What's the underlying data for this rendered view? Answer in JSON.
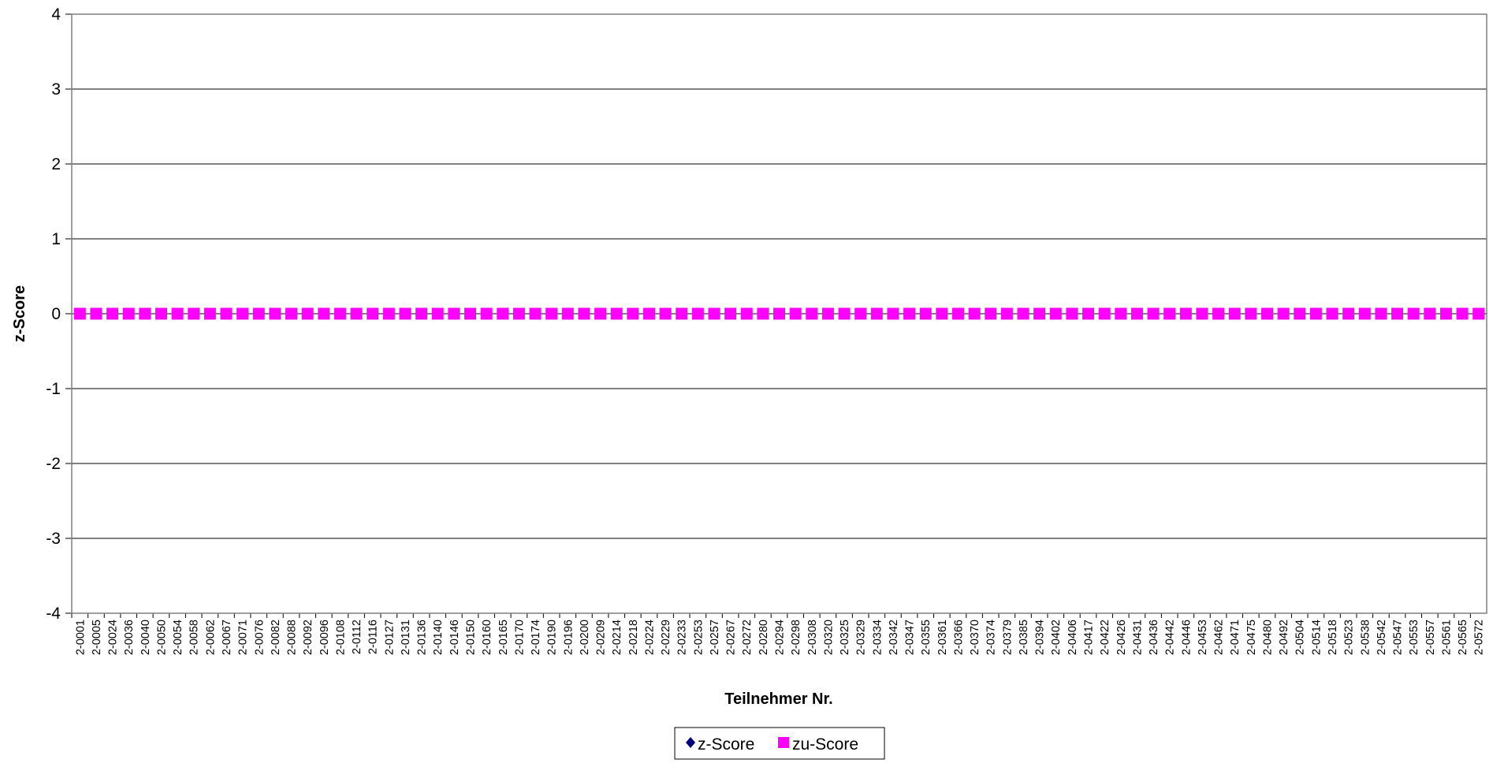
{
  "chart_data": {
    "type": "line",
    "title": "",
    "xlabel": "Teilnehmer Nr.",
    "ylabel": "z-Score",
    "ylim": [
      -4,
      4
    ],
    "yticks": [
      4,
      3,
      2,
      1,
      0,
      -1,
      -2,
      -3,
      -4
    ],
    "grid": true,
    "legend_position": "bottom",
    "categories": [
      "2-0001",
      "2-0005",
      "2-0024",
      "2-0036",
      "2-0040",
      "2-0050",
      "2-0054",
      "2-0058",
      "2-0062",
      "2-0067",
      "2-0071",
      "2-0076",
      "2-0082",
      "2-0088",
      "2-0092",
      "2-0096",
      "2-0108",
      "2-0112",
      "2-0116",
      "2-0127",
      "2-0131",
      "2-0136",
      "2-0140",
      "2-0146",
      "2-0150",
      "2-0160",
      "2-0165",
      "2-0170",
      "2-0174",
      "2-0190",
      "2-0196",
      "2-0200",
      "2-0209",
      "2-0214",
      "2-0218",
      "2-0224",
      "2-0229",
      "2-0233",
      "2-0253",
      "2-0257",
      "2-0267",
      "2-0272",
      "2-0280",
      "2-0294",
      "2-0298",
      "2-0308",
      "2-0320",
      "2-0325",
      "2-0329",
      "2-0334",
      "2-0342",
      "2-0347",
      "2-0355",
      "2-0361",
      "2-0366",
      "2-0370",
      "2-0374",
      "2-0379",
      "2-0385",
      "2-0394",
      "2-0402",
      "2-0406",
      "2-0417",
      "2-0422",
      "2-0426",
      "2-0431",
      "2-0436",
      "2-0442",
      "2-0446",
      "2-0453",
      "2-0462",
      "2-0471",
      "2-0475",
      "2-0480",
      "2-0492",
      "2-0504",
      "2-0514",
      "2-0518",
      "2-0523",
      "2-0538",
      "2-0542",
      "2-0547",
      "2-0553",
      "2-0557",
      "2-0561",
      "2-0565",
      "2-0572"
    ],
    "series": [
      {
        "name": "z-Score",
        "color": "#000080",
        "marker": "diamond",
        "values": [
          0,
          0,
          0,
          0,
          0,
          0,
          0,
          0,
          0,
          0,
          0,
          0,
          0,
          0,
          0,
          0,
          0,
          0,
          0,
          0,
          0,
          0,
          0,
          0,
          0,
          0,
          0,
          0,
          0,
          0,
          0,
          0,
          0,
          0,
          0,
          0,
          0,
          0,
          0,
          0,
          0,
          0,
          0,
          0,
          0,
          0,
          0,
          0,
          0,
          0,
          0,
          0,
          0,
          0,
          0,
          0,
          0,
          0,
          0,
          0,
          0,
          0,
          0,
          0,
          0,
          0,
          0,
          0,
          0,
          0,
          0,
          0,
          0,
          0,
          0,
          0,
          0,
          0,
          0,
          0,
          0,
          0,
          0,
          0,
          0,
          0,
          0
        ]
      },
      {
        "name": "zu-Score",
        "color": "#FF00FF",
        "marker": "square",
        "values": [
          0,
          0,
          0,
          0,
          0,
          0,
          0,
          0,
          0,
          0,
          0,
          0,
          0,
          0,
          0,
          0,
          0,
          0,
          0,
          0,
          0,
          0,
          0,
          0,
          0,
          0,
          0,
          0,
          0,
          0,
          0,
          0,
          0,
          0,
          0,
          0,
          0,
          0,
          0,
          0,
          0,
          0,
          0,
          0,
          0,
          0,
          0,
          0,
          0,
          0,
          0,
          0,
          0,
          0,
          0,
          0,
          0,
          0,
          0,
          0,
          0,
          0,
          0,
          0,
          0,
          0,
          0,
          0,
          0,
          0,
          0,
          0,
          0,
          0,
          0,
          0,
          0,
          0,
          0,
          0,
          0,
          0,
          0,
          0,
          0,
          0,
          0
        ]
      }
    ]
  }
}
